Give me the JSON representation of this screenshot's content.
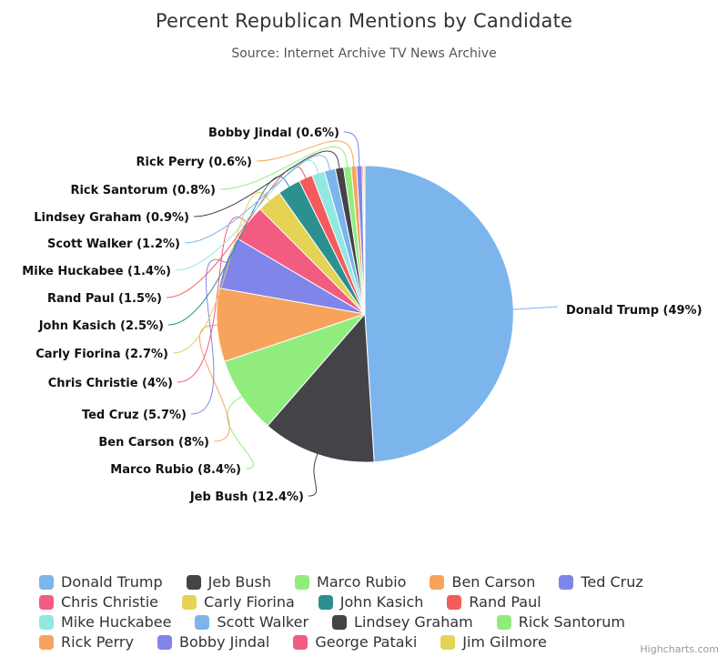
{
  "chart_data": {
    "type": "pie",
    "title": "Percent Republican Mentions by Candidate",
    "subtitle": "Source: Internet Archive TV News Archive",
    "unit": "%",
    "label_format": "{name} ({value}%)",
    "legend_position": "bottom",
    "slices": [
      {
        "name": "Donald Trump",
        "value": 49,
        "color": "#7cb5ec"
      },
      {
        "name": "Jeb Bush",
        "value": 12.4,
        "color": "#434348"
      },
      {
        "name": "Marco Rubio",
        "value": 8.4,
        "color": "#90ed7d"
      },
      {
        "name": "Ben Carson",
        "value": 8,
        "color": "#f7a35c"
      },
      {
        "name": "Ted Cruz",
        "value": 5.7,
        "color": "#8085e9"
      },
      {
        "name": "Chris Christie",
        "value": 4,
        "color": "#f15c80"
      },
      {
        "name": "Carly Fiorina",
        "value": 2.7,
        "color": "#e4d354"
      },
      {
        "name": "John Kasich",
        "value": 2.5,
        "color": "#2b908f"
      },
      {
        "name": "Rand Paul",
        "value": 1.5,
        "color": "#f45b5b"
      },
      {
        "name": "Mike Huckabee",
        "value": 1.4,
        "color": "#91e8e1"
      },
      {
        "name": "Scott Walker",
        "value": 1.2,
        "color": "#7cb5ec"
      },
      {
        "name": "Lindsey Graham",
        "value": 0.9,
        "color": "#434348"
      },
      {
        "name": "Rick Santorum",
        "value": 0.8,
        "color": "#90ed7d"
      },
      {
        "name": "Rick Perry",
        "value": 0.6,
        "color": "#f7a35c"
      },
      {
        "name": "Bobby Jindal",
        "value": 0.6,
        "color": "#8085e9"
      },
      {
        "name": "George Pataki",
        "value": null,
        "color": "#f15c80"
      },
      {
        "name": "Jim Gilmore",
        "value": null,
        "color": "#e4d354"
      }
    ],
    "legend_rows": [
      [
        "Donald Trump",
        "Jeb Bush",
        "Marco Rubio",
        "Ben Carson",
        "Ted Cruz"
      ],
      [
        "Chris Christie",
        "Carly Fiorina",
        "John Kasich",
        "Rand Paul"
      ],
      [
        "Mike Huckabee",
        "Scott Walker",
        "Lindsey Graham",
        "Rick Santorum"
      ],
      [
        "Rick Perry",
        "Bobby Jindal",
        "George Pataki",
        "Jim Gilmore"
      ]
    ]
  },
  "credits": {
    "label": "Highcharts.com"
  }
}
